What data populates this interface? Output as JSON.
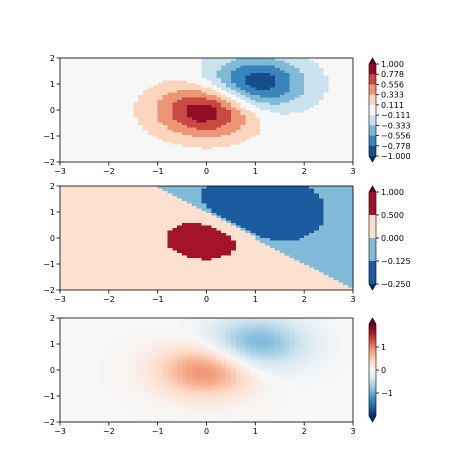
{
  "chart_data": [
    {
      "type": "heatmap",
      "variant": "discrete-levels",
      "function": "z = exp(-x^2 - y^2) - exp(-(x-1)^2 - (y-1)^2)",
      "x_range": [
        -3,
        3
      ],
      "y_range": [
        -2,
        2
      ],
      "xticks": [
        -3,
        -2,
        -1,
        0,
        1,
        2,
        3
      ],
      "yticks": [
        -2,
        -1,
        0,
        1,
        2
      ],
      "grid": false,
      "colormap": "RdBu_r",
      "levels": [
        -1.0,
        -0.778,
        -0.556,
        -0.333,
        -0.111,
        0.111,
        0.333,
        0.556,
        0.778,
        1.0
      ],
      "colorbar": {
        "ticks": [
          "1.000",
          "0.778",
          "0.556",
          "0.333",
          "0.111",
          "−0.111",
          "−0.333",
          "−0.556",
          "−0.778",
          "−1.000"
        ],
        "extend": "both",
        "placement": "right"
      }
    },
    {
      "type": "heatmap",
      "variant": "two-slope-norm",
      "function": "z = exp(-x^2 - y^2) - exp(-(x-1)^2 - (y-1)^2)",
      "x_range": [
        -3,
        3
      ],
      "y_range": [
        -2,
        2
      ],
      "xticks": [
        -3,
        -2,
        -1,
        0,
        1,
        2,
        3
      ],
      "yticks": [
        -2,
        -1,
        0,
        1,
        2
      ],
      "grid": false,
      "colormap": "RdBu_r",
      "boundaries": [
        -0.25,
        -0.125,
        0.0,
        0.5,
        1.0
      ],
      "colorbar": {
        "ticks": [
          "1.000",
          "0.500",
          "0.000",
          "−0.125",
          "−0.250"
        ],
        "extend": "both",
        "placement": "right"
      }
    },
    {
      "type": "heatmap",
      "variant": "continuous",
      "function": "z = exp(-x^2 - y^2) - exp(-(x-1)^2 - (y-1)^2)",
      "x_range": [
        -3,
        3
      ],
      "y_range": [
        -2,
        2
      ],
      "xticks": [
        -3,
        -2,
        -1,
        0,
        1,
        2,
        3
      ],
      "yticks": [
        -2,
        -1,
        0,
        1,
        2
      ],
      "grid": false,
      "colormap": "RdBu_r",
      "vmin": -2,
      "vmax": 2,
      "colorbar": {
        "ticks": [
          "1",
          "0",
          "−1"
        ],
        "tick_values": [
          1,
          0,
          -1
        ],
        "extend": "both",
        "placement": "right"
      }
    }
  ],
  "colormap_stops": [
    "#053061",
    "#2166ac",
    "#4393c3",
    "#92c5de",
    "#d1e5f0",
    "#f7f7f7",
    "#fddbc7",
    "#f4a582",
    "#d6604d",
    "#b2182b",
    "#67001f"
  ]
}
